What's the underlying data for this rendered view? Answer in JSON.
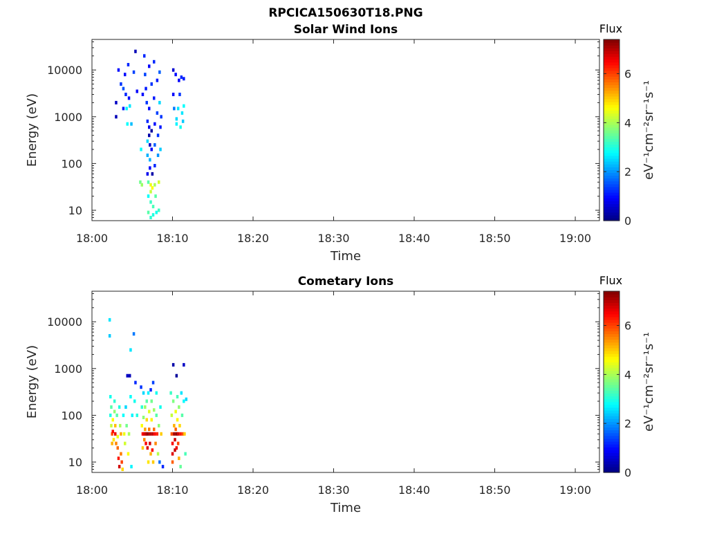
{
  "figure": {
    "title": "RPCICA150630T18.PNG"
  },
  "chart_data": [
    {
      "type": "heatmap",
      "title": "Solar Wind Ions",
      "xlabel": "Time",
      "ylabel": "Energy (eV)",
      "xticks": [
        "18:00",
        "18:10",
        "18:20",
        "18:30",
        "18:40",
        "18:50",
        "19:00"
      ],
      "xlim_minutes": [
        0,
        63
      ],
      "yticks": [
        "10",
        "100",
        "1000",
        "10000"
      ],
      "yscale": "log",
      "ylim": [
        6,
        45000
      ],
      "colorbar": {
        "title": "Flux",
        "label": "eV⁻¹cm⁻²sr⁻¹s⁻¹",
        "range": [
          0,
          7.4
        ],
        "ticks": [
          "0",
          "2",
          "4",
          "6"
        ],
        "colormap": "jet"
      },
      "cells": [
        [
          3.0,
          2000,
          0.5
        ],
        [
          3.0,
          1000,
          0.4
        ],
        [
          3.3,
          10000,
          1.0
        ],
        [
          3.6,
          5000,
          1.3
        ],
        [
          3.9,
          4000,
          1.5
        ],
        [
          3.9,
          1500,
          1.1
        ],
        [
          4.1,
          8000,
          1.0
        ],
        [
          4.2,
          3000,
          1.2
        ],
        [
          4.3,
          1500,
          2.7
        ],
        [
          4.4,
          700,
          2.8
        ],
        [
          4.5,
          13000,
          1.2
        ],
        [
          4.6,
          2500,
          1.0
        ],
        [
          4.7,
          1700,
          2.6
        ],
        [
          4.9,
          700,
          2.3
        ],
        [
          5.2,
          9000,
          1.4
        ],
        [
          5.4,
          25000,
          0.4
        ],
        [
          5.6,
          3500,
          0.9
        ],
        [
          6.1,
          200,
          2.8
        ],
        [
          6.0,
          40,
          3.6
        ],
        [
          6.2,
          35,
          3.9
        ],
        [
          6.3,
          3000,
          1.0
        ],
        [
          6.5,
          20000,
          1.2
        ],
        [
          6.6,
          8000,
          1.4
        ],
        [
          6.7,
          4000,
          1.1
        ],
        [
          6.8,
          2000,
          1.3
        ],
        [
          6.9,
          800,
          1.2
        ],
        [
          6.9,
          300,
          2.5
        ],
        [
          6.9,
          150,
          2.2
        ],
        [
          6.9,
          60,
          0.8
        ],
        [
          7.0,
          40,
          3.4
        ],
        [
          7.0,
          20,
          2.8
        ],
        [
          7.0,
          9,
          3.4
        ],
        [
          7.1,
          12000,
          0.9
        ],
        [
          7.1,
          1500,
          1.0
        ],
        [
          7.1,
          600,
          0.8
        ],
        [
          7.1,
          400,
          0.3
        ],
        [
          7.2,
          250,
          0.5
        ],
        [
          7.2,
          120,
          2.2
        ],
        [
          7.2,
          80,
          0.9
        ],
        [
          7.3,
          35,
          4.5
        ],
        [
          7.3,
          25,
          4.2
        ],
        [
          7.3,
          15,
          3.2
        ],
        [
          7.3,
          7,
          3.1
        ],
        [
          7.4,
          5000,
          1.3
        ],
        [
          7.4,
          500,
          0.2
        ],
        [
          7.4,
          200,
          0.9
        ],
        [
          7.5,
          60,
          0.3
        ],
        [
          7.5,
          30,
          4.6
        ],
        [
          7.6,
          12,
          3.3
        ],
        [
          7.6,
          8,
          3.0
        ],
        [
          7.7,
          15000,
          1.2
        ],
        [
          7.7,
          2500,
          1.1
        ],
        [
          7.8,
          700,
          1.0
        ],
        [
          7.8,
          250,
          1.6
        ],
        [
          7.8,
          90,
          1.2
        ],
        [
          7.8,
          35,
          4.0
        ],
        [
          7.9,
          20,
          3.4
        ],
        [
          8.0,
          9,
          2.9
        ],
        [
          8.1,
          6000,
          1.1
        ],
        [
          8.1,
          1200,
          1.4
        ],
        [
          8.2,
          400,
          1.3
        ],
        [
          8.2,
          150,
          2.0
        ],
        [
          8.3,
          40,
          4.3
        ],
        [
          8.3,
          10,
          3.2
        ],
        [
          8.4,
          9000,
          1.6
        ],
        [
          8.4,
          2000,
          2.5
        ],
        [
          8.5,
          600,
          1.1
        ],
        [
          8.5,
          200,
          2.4
        ],
        [
          8.6,
          1000,
          1.3
        ],
        [
          10.1,
          10000,
          0.6
        ],
        [
          10.1,
          3000,
          0.9
        ],
        [
          10.2,
          1500,
          1.8
        ],
        [
          10.4,
          8000,
          1.0
        ],
        [
          10.5,
          900,
          2.5
        ],
        [
          10.5,
          700,
          2.7
        ],
        [
          10.7,
          1500,
          2.6
        ],
        [
          10.8,
          6000,
          0.9
        ],
        [
          10.9,
          3000,
          1.3
        ],
        [
          11.0,
          600,
          2.9
        ],
        [
          11.1,
          7000,
          1.2
        ],
        [
          11.2,
          1200,
          2.6
        ],
        [
          11.3,
          800,
          2.4
        ],
        [
          11.4,
          6500,
          1.1
        ],
        [
          11.4,
          1700,
          2.8
        ]
      ]
    },
    {
      "type": "heatmap",
      "title": "Cometary Ions",
      "xlabel": "Time",
      "ylabel": "Energy (eV)",
      "xticks": [
        "18:00",
        "18:10",
        "18:20",
        "18:30",
        "18:40",
        "18:50",
        "19:00"
      ],
      "xlim_minutes": [
        0,
        63
      ],
      "yticks": [
        "10",
        "100",
        "1000",
        "10000"
      ],
      "yscale": "log",
      "ylim": [
        6,
        45000
      ],
      "colorbar": {
        "title": "Flux",
        "label": "eV⁻¹cm⁻²sr⁻¹s⁻¹",
        "range": [
          0,
          7.4
        ],
        "ticks": [
          "0",
          "2",
          "4",
          "6"
        ],
        "colormap": "jet"
      },
      "cells": [
        [
          2.2,
          11000,
          2.6
        ],
        [
          2.2,
          5000,
          2.4
        ],
        [
          2.3,
          250,
          2.9
        ],
        [
          2.3,
          100,
          3.0
        ],
        [
          2.4,
          150,
          3.4
        ],
        [
          2.4,
          60,
          4.2
        ],
        [
          2.5,
          40,
          5.9
        ],
        [
          2.5,
          25,
          5.2
        ],
        [
          2.6,
          80,
          4.6
        ],
        [
          2.6,
          45,
          6.4
        ],
        [
          2.7,
          30,
          4.8
        ],
        [
          2.8,
          200,
          3.1
        ],
        [
          2.8,
          120,
          3.8
        ],
        [
          2.9,
          60,
          5.1
        ],
        [
          2.9,
          40,
          6.6
        ],
        [
          3.0,
          25,
          5.5
        ],
        [
          3.1,
          100,
          3.4
        ],
        [
          3.2,
          35,
          4.5
        ],
        [
          3.2,
          20,
          5.7
        ],
        [
          3.3,
          12,
          6.3
        ],
        [
          3.4,
          8,
          6.8
        ],
        [
          3.4,
          150,
          3.0
        ],
        [
          3.5,
          60,
          4.0
        ],
        [
          3.6,
          40,
          5.3
        ],
        [
          3.6,
          15,
          5.6
        ],
        [
          3.7,
          10,
          6.0
        ],
        [
          3.8,
          7,
          4.9
        ],
        [
          3.9,
          100,
          2.8
        ],
        [
          4.0,
          40,
          4.5
        ],
        [
          4.1,
          25,
          4.3
        ],
        [
          4.2,
          150,
          2.5
        ],
        [
          4.3,
          60,
          3.6
        ],
        [
          4.4,
          700,
          0.5
        ],
        [
          4.5,
          15,
          4.6
        ],
        [
          4.6,
          40,
          4.0
        ],
        [
          4.7,
          700,
          0.4
        ],
        [
          4.8,
          2500,
          2.6
        ],
        [
          4.8,
          250,
          2.8
        ],
        [
          4.9,
          8,
          2.7
        ],
        [
          5.0,
          100,
          2.7
        ],
        [
          5.2,
          5500,
          1.8
        ],
        [
          5.3,
          200,
          2.9
        ],
        [
          5.4,
          500,
          1.2
        ],
        [
          5.6,
          100,
          3.0
        ],
        [
          6.1,
          400,
          1.3
        ],
        [
          6.2,
          150,
          3.1
        ],
        [
          6.2,
          60,
          4.6
        ],
        [
          6.3,
          40,
          6.5
        ],
        [
          6.3,
          20,
          5.0
        ],
        [
          6.4,
          300,
          2.5
        ],
        [
          6.4,
          90,
          3.8
        ],
        [
          6.5,
          40,
          6.7
        ],
        [
          6.5,
          30,
          5.5
        ],
        [
          6.6,
          150,
          3.9
        ],
        [
          6.6,
          50,
          5.3
        ],
        [
          6.7,
          40,
          6.9
        ],
        [
          6.7,
          25,
          6.5
        ],
        [
          6.8,
          200,
          3.4
        ],
        [
          6.8,
          80,
          4.9
        ],
        [
          6.9,
          40,
          7.2
        ],
        [
          6.9,
          20,
          6.7
        ],
        [
          7.0,
          10,
          4.8
        ],
        [
          7.0,
          300,
          2.7
        ],
        [
          7.1,
          120,
          4.4
        ],
        [
          7.1,
          50,
          5.6
        ],
        [
          7.2,
          40,
          7.0
        ],
        [
          7.2,
          25,
          6.8
        ],
        [
          7.3,
          15,
          5.2
        ],
        [
          7.3,
          350,
          1.2
        ],
        [
          7.4,
          200,
          3.6
        ],
        [
          7.4,
          80,
          4.7
        ],
        [
          7.5,
          40,
          6.9
        ],
        [
          7.5,
          18,
          6.4
        ],
        [
          7.6,
          10,
          5.0
        ],
        [
          7.6,
          500,
          1.4
        ],
        [
          7.7,
          130,
          3.9
        ],
        [
          7.7,
          50,
          5.7
        ],
        [
          7.8,
          40,
          6.5
        ],
        [
          7.9,
          25,
          5.5
        ],
        [
          8.0,
          300,
          2.9
        ],
        [
          8.0,
          100,
          3.4
        ],
        [
          8.1,
          40,
          6.2
        ],
        [
          8.2,
          15,
          4.1
        ],
        [
          8.3,
          60,
          3.8
        ],
        [
          8.4,
          10,
          1.7
        ],
        [
          8.5,
          150,
          2.9
        ],
        [
          8.6,
          40,
          5.0
        ],
        [
          8.8,
          8,
          1.2
        ],
        [
          9.8,
          300,
          3.2
        ],
        [
          9.9,
          100,
          4.2
        ],
        [
          9.9,
          40,
          5.9
        ],
        [
          10.0,
          25,
          6.5
        ],
        [
          10.0,
          15,
          6.7
        ],
        [
          10.0,
          10,
          5.8
        ],
        [
          10.1,
          1200,
          0.3
        ],
        [
          10.1,
          200,
          3.7
        ],
        [
          10.2,
          60,
          5.2
        ],
        [
          10.2,
          40,
          7.1
        ],
        [
          10.3,
          30,
          6.8
        ],
        [
          10.3,
          18,
          6.9
        ],
        [
          10.4,
          120,
          4.5
        ],
        [
          10.4,
          50,
          5.8
        ],
        [
          10.5,
          40,
          7.3
        ],
        [
          10.5,
          20,
          6.6
        ],
        [
          10.5,
          700,
          0.2
        ],
        [
          10.6,
          250,
          3.3
        ],
        [
          10.6,
          80,
          4.7
        ],
        [
          10.7,
          40,
          6.8
        ],
        [
          10.7,
          25,
          6.0
        ],
        [
          10.8,
          12,
          5.2
        ],
        [
          10.8,
          150,
          3.8
        ],
        [
          10.9,
          60,
          4.9
        ],
        [
          11.0,
          40,
          6.3
        ],
        [
          11.0,
          8,
          3.5
        ],
        [
          11.1,
          300,
          2.6
        ],
        [
          11.2,
          100,
          3.4
        ],
        [
          11.3,
          40,
          5.9
        ],
        [
          11.4,
          1200,
          0.5
        ],
        [
          11.4,
          200,
          2.8
        ],
        [
          11.5,
          40,
          5.0
        ],
        [
          11.6,
          15,
          3.3
        ],
        [
          11.7,
          220,
          2.5
        ]
      ]
    }
  ]
}
